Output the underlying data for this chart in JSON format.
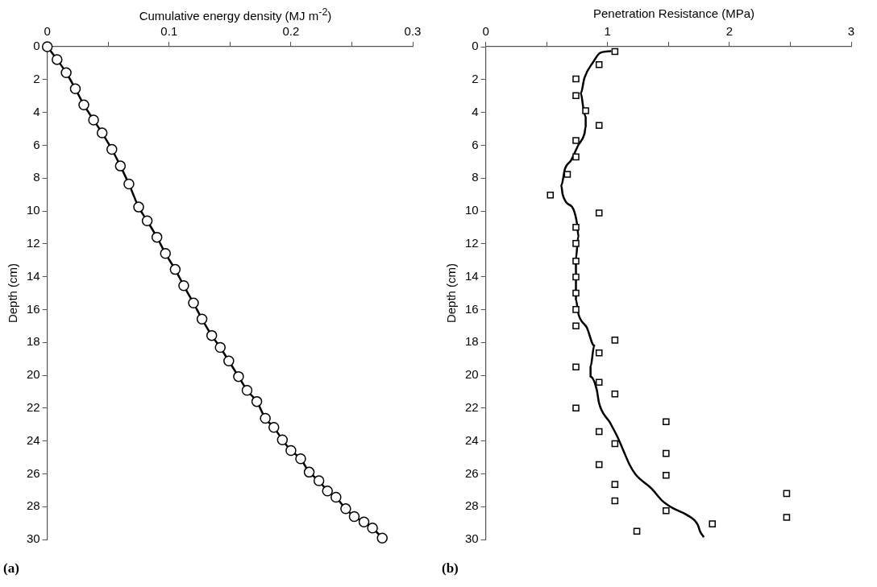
{
  "chart_data": [
    {
      "type": "line",
      "xlabel": "Cumulative energy density (MJ m$^{-2}$)",
      "ylabel": "Depth (cm)",
      "annotations": [
        "(a)"
      ],
      "xlim": [
        0,
        0.3
      ],
      "xticks": [
        0,
        {
          "value": 0.05,
          "label": null
        },
        0.1,
        {
          "value": 0.15,
          "label": null
        },
        0.2,
        {
          "value": 0.25,
          "label": null
        },
        0.3
      ],
      "ylim": [
        30,
        0
      ],
      "yticks": [
        0,
        2,
        4,
        6,
        8,
        10,
        12,
        14,
        16,
        18,
        20,
        22,
        24,
        26,
        28,
        30
      ],
      "grid": false,
      "legend": false,
      "series": [
        {
          "marker": "circle",
          "color": "#000000",
          "x": [
            0,
            0.008,
            0.0155,
            0.023,
            0.03,
            0.038,
            0.045,
            0.053,
            0.06,
            0.067,
            0.075,
            0.082,
            0.09,
            0.097,
            0.105,
            0.112,
            0.12,
            0.127,
            0.135,
            0.142,
            0.149,
            0.157,
            0.164,
            0.172,
            0.179,
            0.186,
            0.193,
            0.2,
            0.208,
            0.215,
            0.223,
            0.23,
            0.237,
            0.245,
            0.252,
            0.26,
            0.267,
            0.275
          ],
          "values": [
            0,
            0.78,
            1.58,
            2.56,
            3.54,
            4.46,
            5.25,
            6.25,
            7.26,
            8.36,
            9.76,
            10.6,
            11.6,
            12.59,
            13.56,
            14.55,
            15.6,
            16.58,
            17.58,
            18.31,
            19.13,
            20.08,
            20.92,
            21.6,
            22.62,
            23.17,
            23.93,
            24.58,
            25.09,
            25.9,
            26.42,
            27.05,
            27.43,
            28.13,
            28.6,
            28.93,
            29.3,
            29.91
          ]
        }
      ]
    },
    {
      "type": "scatter",
      "xlabel": "Penetration Resistance (MPa)",
      "ylabel": "Depth (cm)",
      "annotations": [
        "(b)"
      ],
      "xlim": [
        0,
        3
      ],
      "xticks": [
        0,
        {
          "value": 0.5,
          "label": null
        },
        1,
        {
          "value": 1.5,
          "label": null
        },
        2,
        {
          "value": 2.5,
          "label": null
        },
        3
      ],
      "ylim": [
        30,
        0
      ],
      "yticks": [
        0,
        2,
        4,
        6,
        8,
        10,
        12,
        14,
        16,
        18,
        20,
        22,
        24,
        26,
        28,
        30
      ],
      "grid": false,
      "legend": false,
      "series": [
        {
          "marker": "square",
          "color": "#000000",
          "x": [
            1.06,
            0.93,
            0.74,
            0.74,
            0.82,
            0.93,
            0.74,
            0.74,
            0.67,
            0.53,
            0.93,
            0.74,
            0.74,
            0.74,
            0.74,
            0.74,
            0.74,
            0.74,
            1.06,
            0.93,
            0.74,
            0.93,
            1.06,
            0.74,
            1.48,
            0.93,
            1.06,
            1.48,
            0.93,
            1.48,
            1.06,
            1.06,
            2.47,
            1.48,
            2.47,
            1.86,
            1.24
          ],
          "values": [
            0.29,
            1.09,
            1.96,
            2.98,
            3.9,
            4.79,
            5.71,
            6.71,
            7.77,
            9.03,
            10.12,
            10.99,
            11.98,
            13.05,
            14.02,
            15.0,
            16.0,
            17.0,
            17.86,
            18.64,
            19.5,
            20.43,
            21.14,
            22.0,
            22.83,
            23.43,
            24.17,
            24.76,
            25.44,
            26.09,
            26.65,
            27.65,
            27.2,
            28.25,
            28.65,
            29.05,
            29.5
          ]
        },
        {
          "type": "line",
          "marker": "none",
          "color": "#000000",
          "x": [
            1.03,
            0.94,
            0.88,
            0.81,
            0.78,
            0.8,
            0.82,
            0.82,
            0.81,
            0.76,
            0.7,
            0.65,
            0.62,
            0.63,
            0.66,
            0.72,
            0.75,
            0.76,
            0.74,
            0.74,
            0.74,
            0.76,
            0.83,
            0.89,
            0.86,
            0.86,
            0.91,
            0.93,
            1.02,
            1.08,
            1.13,
            1.18,
            1.23,
            1.36,
            1.45,
            1.54,
            1.65,
            1.74,
            1.76,
            1.79
          ],
          "values": [
            0.27,
            0.37,
            0.95,
            1.89,
            2.83,
            3.68,
            4.28,
            4.87,
            5.3,
            5.98,
            6.92,
            7.43,
            8.45,
            8.96,
            9.47,
            9.9,
            10.83,
            11.52,
            12.88,
            14.58,
            15.4,
            16.26,
            17.11,
            18.2,
            19.49,
            20.08,
            20.85,
            21.7,
            22.89,
            23.74,
            24.59,
            25.44,
            26.04,
            26.89,
            27.65,
            28.11,
            28.5,
            29.1,
            29.52,
            29.86
          ]
        }
      ]
    }
  ]
}
